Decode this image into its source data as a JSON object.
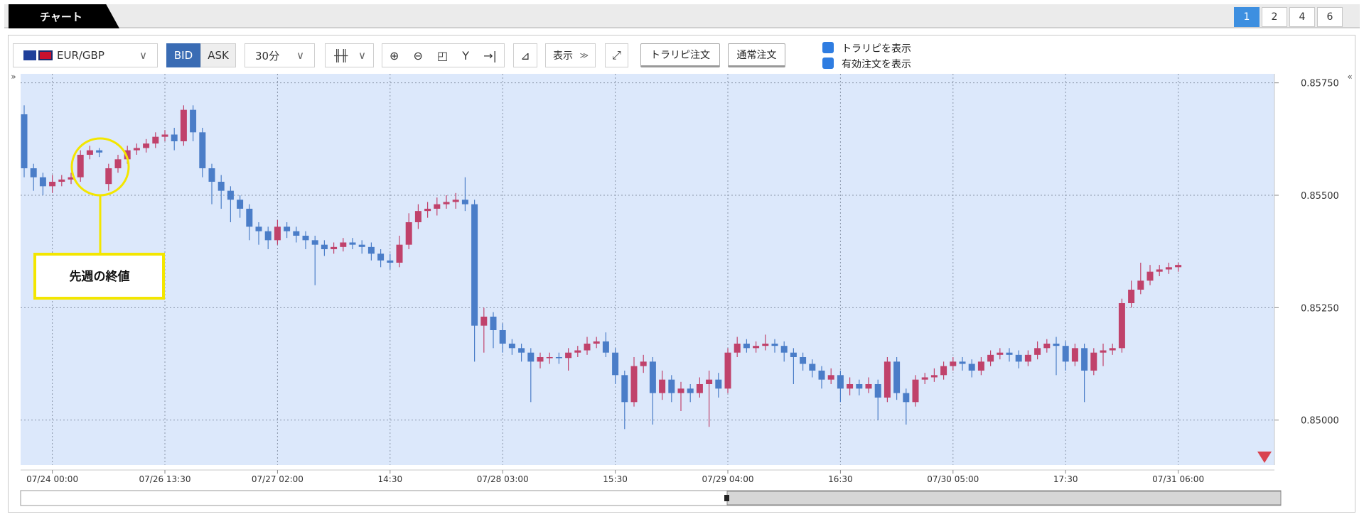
{
  "ui": {
    "tab": "チャート",
    "pages": [
      "1",
      "2",
      "4",
      "6"
    ],
    "symbol": "EUR/GBP",
    "bid": "BID",
    "ask": "ASK",
    "interval": "30分",
    "display": "表示",
    "trarepi_order": "トラリピ注文",
    "normal_order": "通常注文",
    "show_trarepi": "トラリピを表示",
    "show_orders": "有効注文を表示"
  },
  "chart_data": {
    "type": "candlestick",
    "annotation": "先週の終値",
    "up_color": "#c0426b",
    "down_color": "#4a7dc8",
    "grid": true,
    "categories": [
      null,
      null,
      null,
      "07/24 00:00",
      null,
      null,
      null,
      null,
      null,
      null,
      null,
      null,
      null,
      null,
      null,
      "07/26 13:30",
      null,
      null,
      null,
      null,
      null,
      null,
      null,
      null,
      null,
      null,
      null,
      "07/27 02:00",
      null,
      null,
      null,
      null,
      null,
      null,
      null,
      null,
      null,
      null,
      null,
      "14:30",
      null,
      null,
      null,
      null,
      null,
      null,
      null,
      null,
      null,
      null,
      null,
      "07/28 03:00",
      null,
      null,
      null,
      null,
      null,
      null,
      null,
      null,
      null,
      null,
      null,
      "15:30",
      null,
      null,
      null,
      null,
      null,
      null,
      null,
      null,
      null,
      null,
      null,
      "07/29 04:00",
      null,
      null,
      null,
      null,
      null,
      null,
      null,
      null,
      null,
      null,
      null,
      "16:30",
      null,
      null,
      null,
      null,
      null,
      null,
      null,
      null,
      null,
      null,
      null,
      "07/30 05:00",
      null,
      null,
      null,
      null,
      null,
      null,
      null,
      null,
      null,
      null,
      null,
      "17:30",
      null,
      null,
      null,
      null,
      null,
      null,
      null,
      null,
      null,
      null,
      null,
      "07/31 06:00"
    ],
    "open": [
      0.8568,
      0.8556,
      0.8554,
      0.8552,
      0.8553,
      0.85535,
      0.8554,
      0.8559,
      0.856,
      0.85525,
      0.8556,
      0.8558,
      0.856,
      0.85605,
      0.85615,
      0.8563,
      0.85635,
      0.8562,
      0.8569,
      0.8564,
      0.8556,
      0.8553,
      0.8551,
      0.8549,
      0.8547,
      0.8543,
      0.8542,
      0.854,
      0.8543,
      0.8542,
      0.8541,
      0.854,
      0.8539,
      0.8538,
      0.85385,
      0.85395,
      0.8539,
      0.85385,
      0.8537,
      0.85355,
      0.8535,
      0.8539,
      0.8544,
      0.85465,
      0.8547,
      0.8548,
      0.85485,
      0.8549,
      0.8548,
      0.8521,
      0.8523,
      0.852,
      0.8517,
      0.8516,
      0.8515,
      0.8513,
      0.8514,
      0.8514,
      0.85138,
      0.8515,
      0.85155,
      0.8517,
      0.85175,
      0.8515,
      0.851,
      0.8504,
      0.8512,
      0.8513,
      0.8506,
      0.8509,
      0.8506,
      0.8507,
      0.8506,
      0.8508,
      0.8509,
      0.8507,
      0.8515,
      0.8517,
      0.8516,
      0.85165,
      0.8517,
      0.85165,
      0.8515,
      0.8514,
      0.85125,
      0.8511,
      0.8509,
      0.851,
      0.8507,
      0.8508,
      0.8507,
      0.8508,
      0.8505,
      0.8513,
      0.8506,
      0.8504,
      0.8509,
      0.85095,
      0.851,
      0.8512,
      0.8513,
      0.85125,
      0.8511,
      0.8513,
      0.85145,
      0.8515,
      0.85145,
      0.8513,
      0.85145,
      0.8516,
      0.8517,
      0.85165,
      0.8513,
      0.8516,
      0.8511,
      0.8515,
      0.85155,
      0.8516,
      0.8526,
      0.8529,
      0.8531,
      0.8533,
      0.85335,
      0.8534
    ],
    "high": [
      0.857,
      0.8557,
      0.8555,
      0.85545,
      0.85545,
      0.8555,
      0.856,
      0.8561,
      0.85605,
      0.8557,
      0.8559,
      0.8561,
      0.85615,
      0.85625,
      0.8564,
      0.85645,
      0.8565,
      0.857,
      0.857,
      0.8565,
      0.8557,
      0.85545,
      0.8552,
      0.855,
      0.8548,
      0.8544,
      0.8543,
      0.85445,
      0.8544,
      0.8543,
      0.8542,
      0.8541,
      0.854,
      0.85395,
      0.85405,
      0.85405,
      0.854,
      0.85395,
      0.8538,
      0.8537,
      0.8541,
      0.8546,
      0.8548,
      0.85485,
      0.85495,
      0.855,
      0.85505,
      0.8554,
      0.8549,
      0.8525,
      0.8524,
      0.85215,
      0.8518,
      0.8517,
      0.8516,
      0.8515,
      0.8515,
      0.8515,
      0.8516,
      0.85165,
      0.85185,
      0.85185,
      0.85195,
      0.8516,
      0.8511,
      0.8514,
      0.85145,
      0.8514,
      0.8511,
      0.851,
      0.85085,
      0.8508,
      0.85095,
      0.8511,
      0.85105,
      0.8516,
      0.85185,
      0.8518,
      0.85175,
      0.8519,
      0.8518,
      0.85175,
      0.8516,
      0.8515,
      0.85135,
      0.8512,
      0.85115,
      0.8511,
      0.85095,
      0.8509,
      0.85095,
      0.8509,
      0.8514,
      0.8514,
      0.8507,
      0.851,
      0.85105,
      0.85115,
      0.8513,
      0.8514,
      0.8514,
      0.85135,
      0.8514,
      0.85155,
      0.8516,
      0.8516,
      0.85155,
      0.85155,
      0.85175,
      0.8518,
      0.85185,
      0.85175,
      0.8517,
      0.8517,
      0.8516,
      0.8517,
      0.8517,
      0.8527,
      0.8531,
      0.8535,
      0.85345,
      0.85345,
      0.8535,
      0.8535
    ],
    "low": [
      0.8554,
      0.8551,
      0.855,
      0.85505,
      0.8552,
      0.85525,
      0.8553,
      0.8558,
      0.85585,
      0.8551,
      0.8555,
      0.8557,
      0.8559,
      0.85595,
      0.85605,
      0.8562,
      0.856,
      0.8561,
      0.8562,
      0.8554,
      0.8548,
      0.8547,
      0.8544,
      0.8545,
      0.854,
      0.8539,
      0.8538,
      0.8539,
      0.85405,
      0.85395,
      0.8538,
      0.853,
      0.85365,
      0.8537,
      0.85375,
      0.8538,
      0.8537,
      0.85355,
      0.8534,
      0.85335,
      0.8534,
      0.8538,
      0.85425,
      0.8545,
      0.85455,
      0.8547,
      0.8547,
      0.85465,
      0.8513,
      0.8515,
      0.8516,
      0.8515,
      0.85145,
      0.8513,
      0.8504,
      0.85115,
      0.85125,
      0.85125,
      0.8511,
      0.8514,
      0.85145,
      0.8516,
      0.8514,
      0.8508,
      0.8498,
      0.8503,
      0.85105,
      0.8499,
      0.85045,
      0.8504,
      0.8502,
      0.8504,
      0.8505,
      0.84985,
      0.8505,
      0.8506,
      0.8514,
      0.8515,
      0.8515,
      0.85155,
      0.8515,
      0.8513,
      0.8508,
      0.8511,
      0.85095,
      0.8507,
      0.8508,
      0.8504,
      0.85055,
      0.85055,
      0.8506,
      0.85,
      0.8504,
      0.85045,
      0.8499,
      0.8503,
      0.8508,
      0.85085,
      0.8509,
      0.8511,
      0.8511,
      0.85095,
      0.851,
      0.8512,
      0.85135,
      0.8513,
      0.85115,
      0.8512,
      0.85135,
      0.8515,
      0.851,
      0.8511,
      0.8512,
      0.8504,
      0.851,
      0.8512,
      0.85145,
      0.8515,
      0.8525,
      0.8528,
      0.853,
      0.8532,
      0.85325,
      0.8533
    ],
    "close": [
      0.8556,
      0.8554,
      0.8552,
      0.8553,
      0.85535,
      0.8554,
      0.8559,
      0.856,
      0.85595,
      0.8556,
      0.8558,
      0.856,
      0.85605,
      0.85615,
      0.8563,
      0.85635,
      0.8562,
      0.8569,
      0.8564,
      0.8556,
      0.8553,
      0.8551,
      0.8549,
      0.8547,
      0.8543,
      0.8542,
      0.854,
      0.8543,
      0.8542,
      0.8541,
      0.854,
      0.8539,
      0.8538,
      0.85385,
      0.85395,
      0.8539,
      0.85385,
      0.8537,
      0.85355,
      0.8535,
      0.8539,
      0.8544,
      0.85465,
      0.8547,
      0.8548,
      0.85485,
      0.8549,
      0.8548,
      0.8521,
      0.8523,
      0.852,
      0.8517,
      0.8516,
      0.8515,
      0.8513,
      0.8514,
      0.8514,
      0.85138,
      0.8515,
      0.85155,
      0.8517,
      0.85175,
      0.8515,
      0.851,
      0.8504,
      0.8512,
      0.8513,
      0.8506,
      0.8509,
      0.8506,
      0.8507,
      0.8506,
      0.8508,
      0.8509,
      0.8507,
      0.8515,
      0.8517,
      0.8516,
      0.85165,
      0.8517,
      0.85165,
      0.8515,
      0.8514,
      0.85125,
      0.8511,
      0.8509,
      0.851,
      0.8507,
      0.8508,
      0.8507,
      0.8508,
      0.8505,
      0.8513,
      0.8506,
      0.8504,
      0.8509,
      0.85095,
      0.851,
      0.8512,
      0.8513,
      0.85125,
      0.8511,
      0.8513,
      0.85145,
      0.8515,
      0.85145,
      0.8513,
      0.85145,
      0.8516,
      0.8517,
      0.85165,
      0.8513,
      0.8516,
      0.8511,
      0.8515,
      0.85155,
      0.8516,
      0.8526,
      0.8529,
      0.8531,
      0.8533,
      0.85335,
      0.8534,
      0.85345
    ],
    "ylim": [
      0.849,
      0.8577
    ],
    "yticks": [
      {
        "value": 0.85,
        "label": "0.85000"
      },
      {
        "value": 0.8525,
        "label": "0.85250"
      },
      {
        "value": 0.855,
        "label": "0.85500"
      },
      {
        "value": 0.8575,
        "label": "0.85750"
      }
    ]
  }
}
